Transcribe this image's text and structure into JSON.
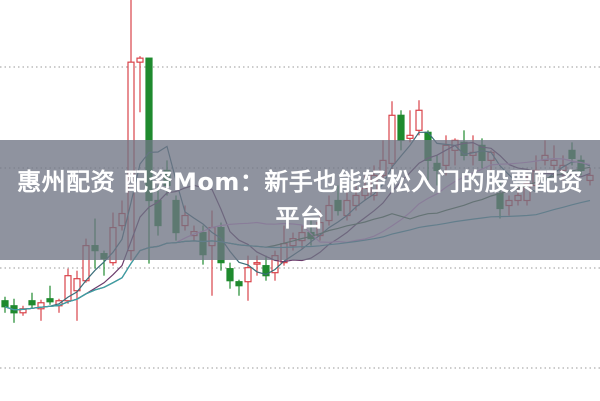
{
  "title": "惠州配资 配资Mom：新手也能轻松入门的股票配资平台",
  "chart_data": {
    "type": "candlestick",
    "title": "",
    "xlabel": "",
    "ylabel": "",
    "grid": "horizontal dotted",
    "ylim": [
      0,
      400
    ],
    "up_color": "#d9434a",
    "down_color": "#1f8a2e",
    "moving_averages": [
      {
        "period": 5,
        "color": "#3b6e7a"
      },
      {
        "period": 10,
        "color": "#6a3a6a"
      },
      {
        "period": 20,
        "color": "#e39be3"
      },
      {
        "period": 30,
        "color": "#3f6e3f"
      },
      {
        "period": 60,
        "color": "#3aa0a8"
      }
    ],
    "ohlc": [
      [
        100,
        94,
        104,
        88
      ],
      [
        95,
        88,
        102,
        78
      ],
      [
        88,
        92,
        95,
        85
      ],
      [
        100,
        96,
        108,
        92
      ],
      [
        92,
        98,
        101,
        80
      ],
      [
        102,
        99,
        115,
        96
      ],
      [
        95,
        100,
        102,
        88
      ],
      [
        100,
        125,
        132,
        97
      ],
      [
        110,
        122,
        130,
        80
      ],
      [
        120,
        155,
        162,
        118
      ],
      [
        155,
        150,
        182,
        132
      ],
      [
        147,
        142,
        150,
        125
      ],
      [
        138,
        173,
        188,
        135
      ],
      [
        175,
        187,
        200,
        170
      ],
      [
        150,
        338,
        400,
        140
      ],
      [
        338,
        342,
        344,
        288
      ],
      [
        342,
        200,
        342,
        137
      ],
      [
        200,
        175,
        215,
        165
      ],
      [
        230,
        215,
        240,
        205
      ],
      [
        200,
        168,
        205,
        160
      ],
      [
        175,
        185,
        195,
        170
      ],
      [
        165,
        169,
        175,
        160
      ],
      [
        168,
        146,
        175,
        136
      ],
      [
        155,
        173,
        190,
        105
      ],
      [
        173,
        138,
        178,
        130
      ],
      [
        132,
        120,
        138,
        112
      ],
      [
        119,
        115,
        121,
        105
      ],
      [
        119,
        133,
        145,
        100
      ],
      [
        137,
        138,
        145,
        125
      ],
      [
        135,
        125,
        145,
        120
      ],
      [
        128,
        145,
        150,
        120
      ],
      [
        138,
        157,
        175,
        135
      ],
      [
        155,
        162,
        168,
        150
      ],
      [
        160,
        168,
        175,
        152
      ],
      [
        168,
        162,
        180,
        155
      ],
      [
        165,
        178,
        190,
        160
      ],
      [
        180,
        195,
        205,
        175
      ],
      [
        200,
        190,
        215,
        185
      ],
      [
        185,
        200,
        210,
        180
      ],
      [
        195,
        205,
        215,
        190
      ],
      [
        205,
        212,
        225,
        200
      ],
      [
        205,
        225,
        235,
        200
      ],
      [
        225,
        240,
        260,
        220
      ],
      [
        237,
        285,
        299,
        230
      ],
      [
        285,
        260,
        290,
        250
      ],
      [
        262,
        265,
        290,
        258
      ],
      [
        270,
        290,
        300,
        265
      ],
      [
        268,
        240,
        270,
        220
      ],
      [
        237,
        230,
        245,
        215
      ],
      [
        235,
        255,
        265,
        225
      ],
      [
        250,
        260,
        262,
        235
      ],
      [
        258,
        245,
        270,
        240
      ],
      [
        245,
        248,
        265,
        235
      ],
      [
        255,
        240,
        262,
        232
      ],
      [
        240,
        248,
        250,
        230
      ],
      [
        207,
        192,
        218,
        182
      ],
      [
        195,
        200,
        205,
        185
      ],
      [
        200,
        205,
        215,
        195
      ],
      [
        200,
        217,
        225,
        195
      ],
      [
        215,
        230,
        245,
        210
      ],
      [
        240,
        245,
        260,
        235
      ],
      [
        235,
        240,
        255,
        225
      ],
      [
        230,
        235,
        245,
        220
      ],
      [
        250,
        242,
        258,
        235
      ],
      [
        240,
        230,
        245,
        225
      ],
      [
        220,
        225,
        232,
        215
      ]
    ]
  }
}
